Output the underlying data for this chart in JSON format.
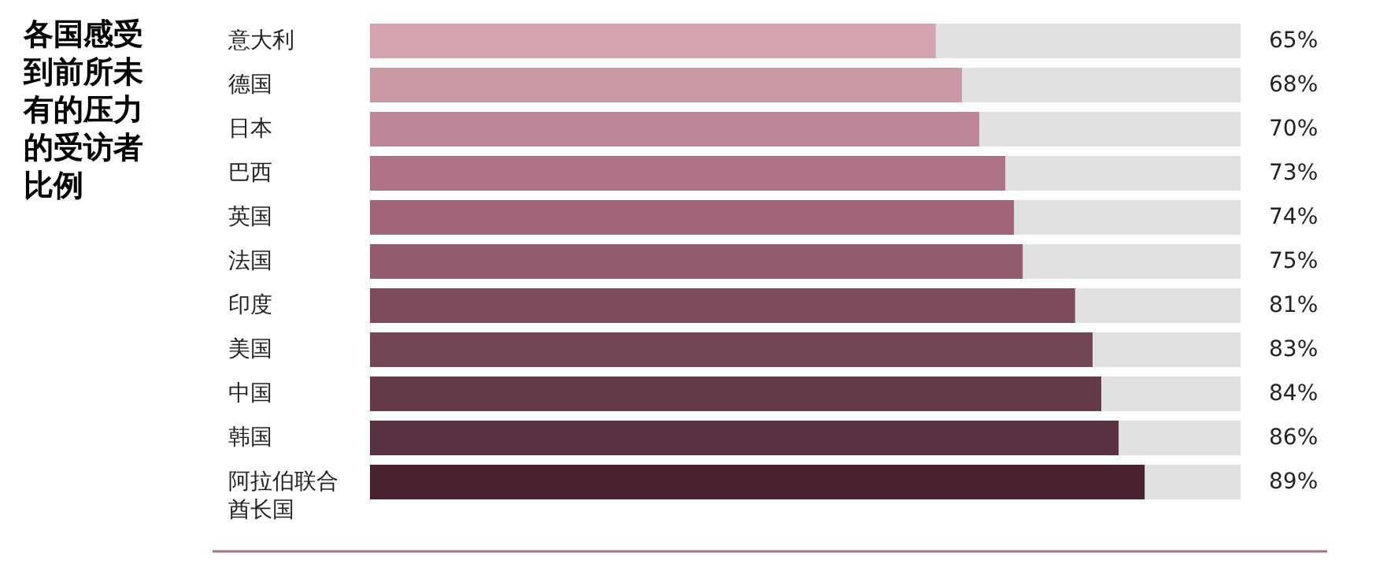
{
  "chart_data": {
    "type": "bar",
    "orientation": "horizontal",
    "stacked": true,
    "title": "各国感受到前所未有的压力的受访者比例",
    "categories": [
      "意大利",
      "德国",
      "日本",
      "巴西",
      "英国",
      "法国",
      "印度",
      "美国",
      "中国",
      "韩国",
      "阿拉伯联合酋长国"
    ],
    "series": [
      {
        "colors": [
          "#d3a3ae",
          "#c898a5",
          "#bd8797",
          "#ae7386",
          "#a06678",
          "#935d6e",
          "#7e4b5c",
          "#744555",
          "#643a4a",
          "#573141",
          "#4a2333"
        ],
        "values": [
          65,
          68,
          70,
          73,
          74,
          75,
          81,
          83,
          84,
          86,
          89
        ],
        "value_labels": [
          "65%",
          "68%",
          "70%",
          "73%",
          "74%",
          "75%",
          "81%",
          "83%",
          "84%",
          "86%",
          "89%"
        ]
      },
      {
        "color": "#e0e0e0",
        "values": [
          35,
          32,
          30,
          27,
          26,
          25,
          19,
          17,
          16,
          14,
          11
        ]
      }
    ]
  }
}
